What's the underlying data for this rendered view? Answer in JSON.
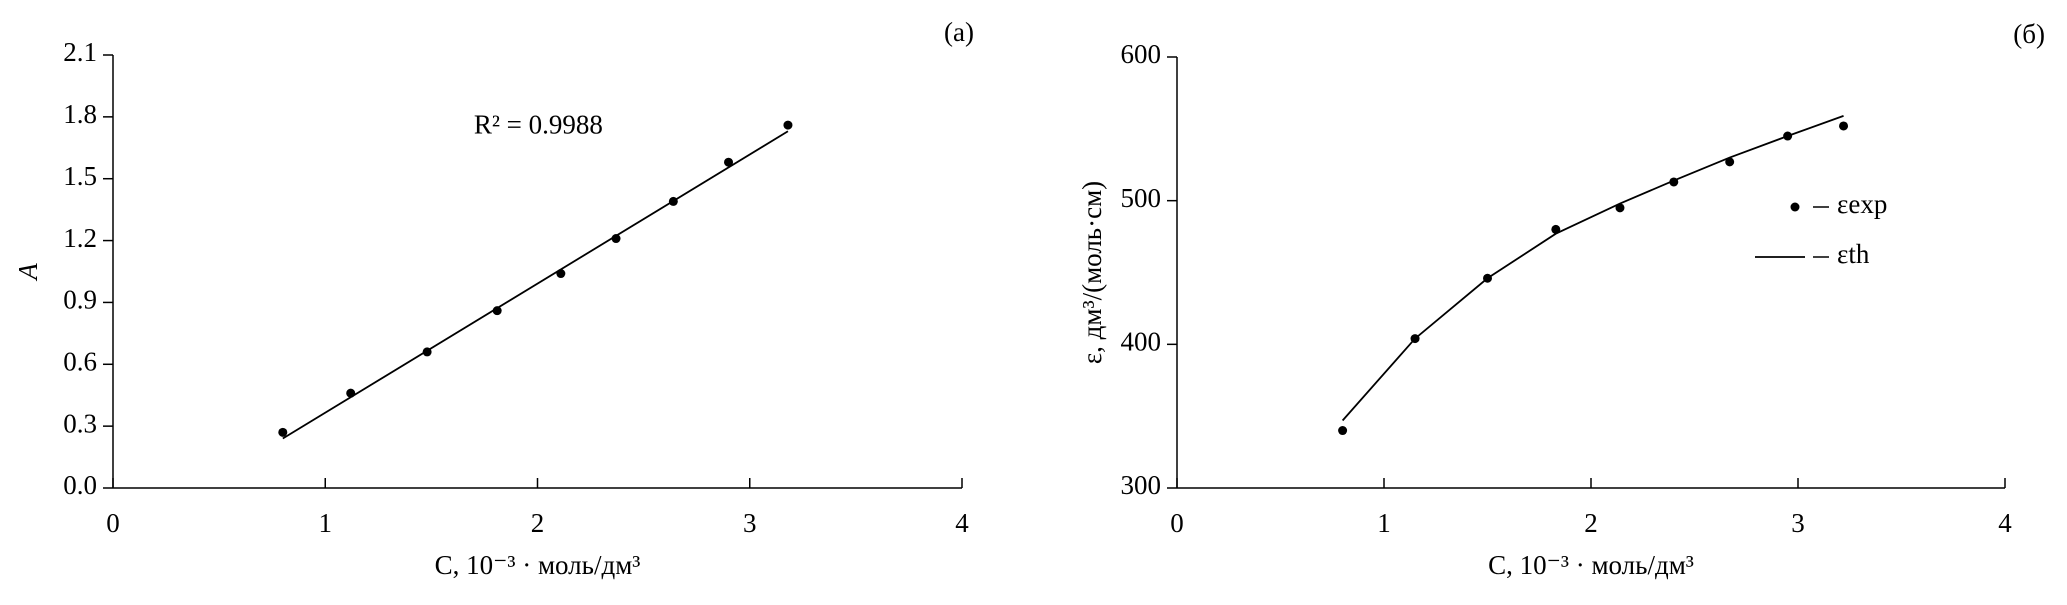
{
  "chart_data": [
    {
      "type": "scatter",
      "panel_label": "(a)",
      "annotation": "R² = 0.9988",
      "x_label": "C, 10⁻³ · моль/дм³",
      "y_label": "A",
      "xlim": [
        0,
        4
      ],
      "xticks": [
        0,
        1,
        2,
        3,
        4
      ],
      "ylim": [
        0,
        2.1
      ],
      "yticks": [
        {
          "value": 0,
          "label": "0.0"
        },
        0.3,
        0.6,
        0.9,
        1.2,
        1.5,
        1.8,
        2.1
      ],
      "series": [
        {
          "style": "points",
          "color": "#000000",
          "x": [
            0.8,
            1.12,
            1.48,
            1.81,
            2.11,
            2.37,
            2.64,
            2.9,
            3.18
          ],
          "values": [
            0.27,
            0.46,
            0.66,
            0.86,
            1.04,
            1.21,
            1.39,
            1.58,
            1.76
          ]
        },
        {
          "style": "line",
          "color": "#000000",
          "x": [
            0.8,
            3.18
          ],
          "values": [
            0.24,
            1.73
          ]
        }
      ]
    },
    {
      "type": "scatter",
      "panel_label": "(б)",
      "x_label": "C, 10⁻³ · моль/дм³",
      "y_label": "ε, дм³/(моль·см)",
      "xlim": [
        0,
        4
      ],
      "xticks": [
        0,
        1,
        2,
        3,
        4
      ],
      "ylim": [
        300,
        600
      ],
      "yticks": [
        300,
        400,
        500,
        600
      ],
      "legend": "right",
      "series": [
        {
          "name": "εexp",
          "style": "points",
          "color": "#000000",
          "x": [
            0.8,
            1.15,
            1.5,
            1.83,
            2.14,
            2.4,
            2.67,
            2.95,
            3.22
          ],
          "values": [
            340,
            404,
            446,
            480,
            495,
            513,
            527,
            545,
            552
          ]
        },
        {
          "name": "εth",
          "style": "line",
          "color": "#000000",
          "x": [
            0.8,
            1.15,
            1.5,
            1.83,
            2.14,
            2.4,
            2.67,
            2.95,
            3.22
          ],
          "values": [
            347,
            404,
            446,
            477,
            498,
            514,
            530,
            545,
            559
          ]
        }
      ]
    }
  ]
}
